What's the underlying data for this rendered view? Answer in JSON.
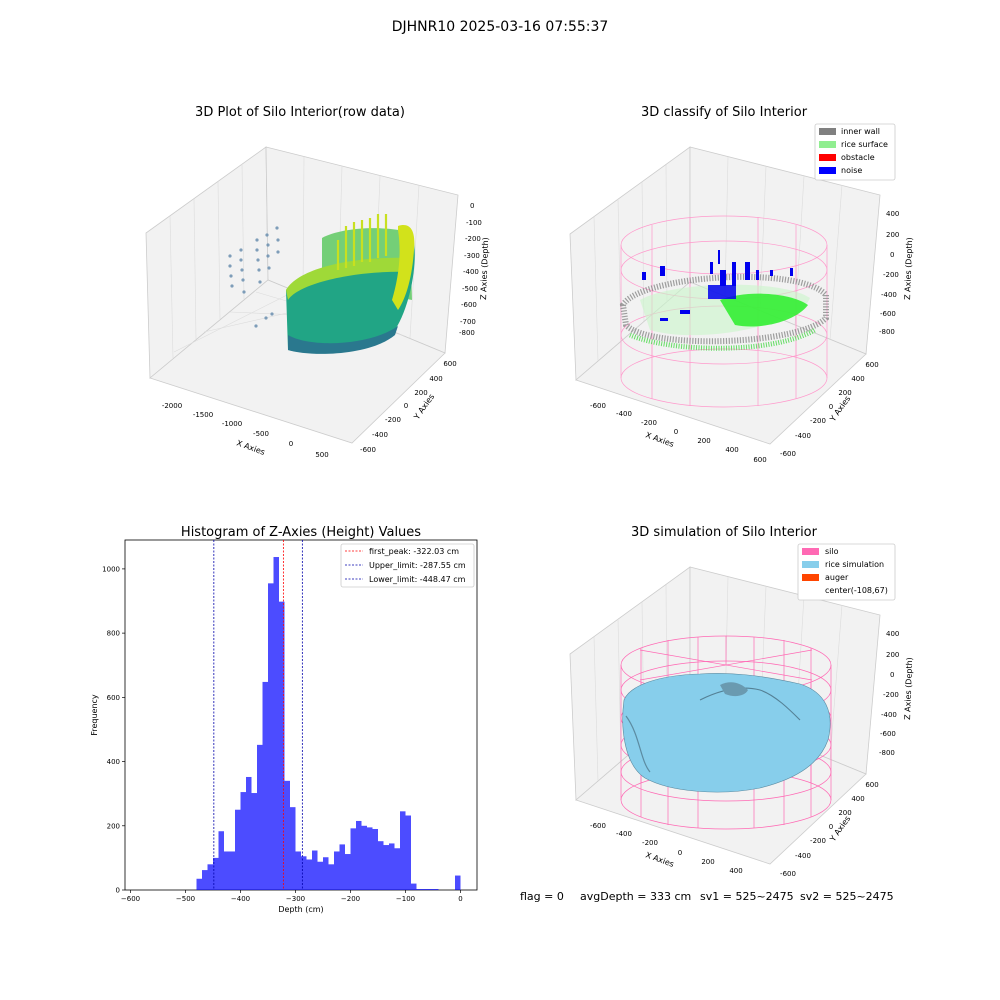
{
  "suptitle": "DJHNR10 2025-03-16 07:55:37",
  "status_line": {
    "flag": "flag = 0",
    "avg_depth": "avgDepth = 333 cm",
    "sv1": "sv1 = 525~2475",
    "sv2": "sv2 = 525~2475"
  },
  "chart_data": [
    {
      "type": "scatter",
      "title": "3D Plot of Silo Interior(row data)",
      "xlabel": "X Axies",
      "ylabel": "Y Axies",
      "zlabel": "Z Axies (Depth)",
      "x_ticks": [
        "-2000",
        "-1500",
        "-1000",
        "-500",
        "0",
        "500"
      ],
      "y_ticks": [
        "600",
        "400",
        "200",
        "0",
        "-200",
        "-400",
        "-600"
      ],
      "z_ticks": [
        "0",
        "-100",
        "-200",
        "-300",
        "-400",
        "-500",
        "-600",
        "-700",
        "-800"
      ],
      "colormap": [
        "#440154",
        "#3b528b",
        "#21918c",
        "#5ec962",
        "#fde725"
      ],
      "grid": true
    },
    {
      "type": "scatter",
      "title": "3D classify of Silo Interior",
      "xlabel": "X Axies",
      "ylabel": "Y Axies",
      "zlabel": "Z Axies (Depth)",
      "x_ticks": [
        "-600",
        "-400",
        "-200",
        "0",
        "200",
        "400",
        "600"
      ],
      "y_ticks": [
        "600",
        "400",
        "200",
        "0",
        "-200",
        "-400",
        "-600"
      ],
      "z_ticks": [
        "400",
        "200",
        "0",
        "-200",
        "-400",
        "-600",
        "-800"
      ],
      "legend_position": "top-right",
      "legend": [
        {
          "label": "inner wall",
          "color": "#808080"
        },
        {
          "label": "rice surface",
          "color": "#90ee90"
        },
        {
          "label": "obstacle",
          "color": "#ff0000"
        },
        {
          "label": "noise",
          "color": "#0000ff"
        }
      ],
      "wire_color": "#ff99cc",
      "grid": true
    },
    {
      "type": "bar",
      "title": "Histogram of Z-Axies (Height) Values",
      "xlabel": "Depth (cm)",
      "ylabel": "Frequency",
      "xlim": [
        -610,
        30
      ],
      "ylim": [
        0,
        1090
      ],
      "x_ticks": [
        -600,
        -500,
        -400,
        -300,
        -200,
        -100,
        0
      ],
      "y_ticks": [
        0,
        200,
        400,
        600,
        800,
        1000
      ],
      "bar_color": "#0000ff",
      "bin_width": 10,
      "bins": [
        {
          "x": -480,
          "v": 35
        },
        {
          "x": -470,
          "v": 62
        },
        {
          "x": -460,
          "v": 80
        },
        {
          "x": -450,
          "v": 100
        },
        {
          "x": -440,
          "v": 183
        },
        {
          "x": -430,
          "v": 120
        },
        {
          "x": -420,
          "v": 120
        },
        {
          "x": -410,
          "v": 250
        },
        {
          "x": -400,
          "v": 305
        },
        {
          "x": -390,
          "v": 352
        },
        {
          "x": -380,
          "v": 302
        },
        {
          "x": -370,
          "v": 452
        },
        {
          "x": -360,
          "v": 648
        },
        {
          "x": -350,
          "v": 955
        },
        {
          "x": -340,
          "v": 1037
        },
        {
          "x": -330,
          "v": 898
        },
        {
          "x": -320,
          "v": 340
        },
        {
          "x": -310,
          "v": 258
        },
        {
          "x": -300,
          "v": 120
        },
        {
          "x": -290,
          "v": 105
        },
        {
          "x": -280,
          "v": 95
        },
        {
          "x": -270,
          "v": 123
        },
        {
          "x": -260,
          "v": 88
        },
        {
          "x": -250,
          "v": 102
        },
        {
          "x": -240,
          "v": 80
        },
        {
          "x": -230,
          "v": 120
        },
        {
          "x": -220,
          "v": 142
        },
        {
          "x": -210,
          "v": 112
        },
        {
          "x": -200,
          "v": 192
        },
        {
          "x": -190,
          "v": 215
        },
        {
          "x": -180,
          "v": 200
        },
        {
          "x": -170,
          "v": 195
        },
        {
          "x": -160,
          "v": 190
        },
        {
          "x": -150,
          "v": 152
        },
        {
          "x": -140,
          "v": 140
        },
        {
          "x": -130,
          "v": 145
        },
        {
          "x": -120,
          "v": 130
        },
        {
          "x": -110,
          "v": 245
        },
        {
          "x": -100,
          "v": 232
        },
        {
          "x": -90,
          "v": 20
        },
        {
          "x": -80,
          "v": 3
        },
        {
          "x": -70,
          "v": 3
        },
        {
          "x": -60,
          "v": 3
        },
        {
          "x": -50,
          "v": 3
        },
        {
          "x": -10,
          "v": 45
        }
      ],
      "lines": [
        {
          "label": "first_peak: -322.03 cm",
          "x": -322.03,
          "color": "#ff0000"
        },
        {
          "label": "Upper_limit: -287.55 cm",
          "x": -287.55,
          "color": "#0000aa"
        },
        {
          "label": "Lower_limit: -448.47 cm",
          "x": -448.47,
          "color": "#0000aa"
        }
      ],
      "legend_position": "top-right"
    },
    {
      "type": "area",
      "title": "3D simulation of Silo Interior",
      "xlabel": "X Axies",
      "ylabel": "Y Axies",
      "zlabel": "Z Axies (Depth)",
      "x_ticks": [
        "-600",
        "-400",
        "-200",
        "0",
        "200",
        "400"
      ],
      "y_ticks": [
        "600",
        "400",
        "200",
        "0",
        "-200",
        "-400",
        "-600"
      ],
      "z_ticks": [
        "400",
        "200",
        "0",
        "-200",
        "-400",
        "-600",
        "-800"
      ],
      "legend_position": "top-right",
      "legend": [
        {
          "label": "silo",
          "color": "#ff69b4"
        },
        {
          "label": "rice simulation",
          "color": "#87ceeb"
        },
        {
          "label": "auger",
          "color": "#ff4500"
        },
        {
          "label": "center(-108,67)",
          "color": ""
        }
      ],
      "grid": true
    }
  ]
}
